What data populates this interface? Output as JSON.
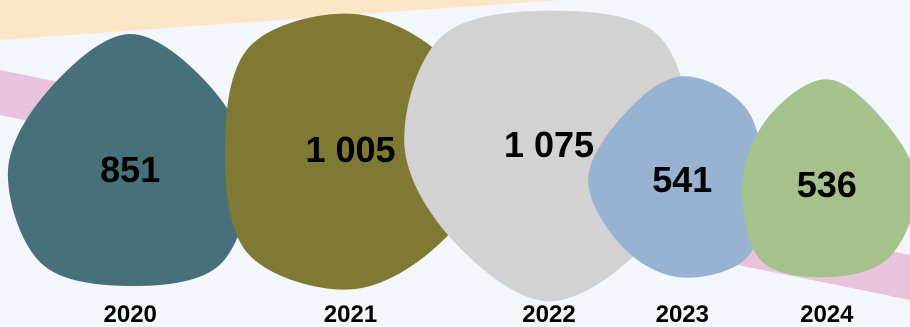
{
  "chart_data": {
    "type": "bar",
    "title": "",
    "xlabel": "",
    "ylabel": "",
    "categories": [
      "2020",
      "2021",
      "2022",
      "2023",
      "2024"
    ],
    "values": [
      851,
      1005,
      1075,
      541,
      536
    ],
    "value_labels": [
      "851",
      "1 005",
      "1 075",
      "541",
      "536"
    ],
    "colors": [
      "#47707b",
      "#7f7934",
      "#d2d2d2",
      "#97b3d1",
      "#a5c28d"
    ],
    "background": {
      "base": "#f3f6fb",
      "band_peach": "#fde6c8",
      "band_pink": "#e9c3dc"
    }
  }
}
